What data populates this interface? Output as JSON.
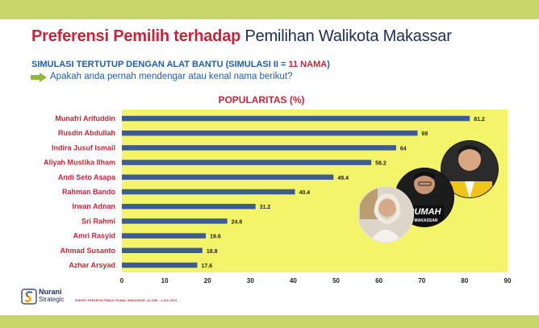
{
  "header": {
    "title_part1": "Preferensi Pemilih terhadap",
    "title_part2": "Pemilihan Walikota Makassar",
    "subtitle": "SIMULASI TERTUTUP DENGAN ALAT BANTU (SIMULASI II = ",
    "subtitle_count": "11 NAMA",
    "subtitle_close": ")",
    "question": "Apakah anda pernah mendengar atau kenal nama berikut?"
  },
  "colors": {
    "bar": "#3c5c93",
    "plot_bg": "#f4f46a",
    "title_red": "#c0273a",
    "title_navy": "#1d2d55",
    "label_red": "#c0273a",
    "frame": "#c7d76a",
    "arrow": "#8db93a"
  },
  "chart_data": {
    "type": "bar",
    "orientation": "horizontal",
    "title": "POPULARITAS (%)",
    "categories": [
      "Munafri Arifuddin",
      "Rusdin Abdullah",
      "Indira Jusuf Ismail",
      "Aliyah Mustika Ilham",
      "Andi Seto Asapa",
      "Rahman Bando",
      "Irwan Adnan",
      "Sri Rahmi",
      "Amri Rasyid",
      "Ahmad Susanto",
      "Azhar Arsyad"
    ],
    "values": [
      81.2,
      69,
      64,
      58.2,
      49.4,
      40.4,
      31.2,
      24.6,
      19.6,
      18.8,
      17.6
    ],
    "value_labels": [
      "81.2",
      "69",
      "64",
      "58.2",
      "49.4",
      "40.4",
      "31.2",
      "24.6",
      "19.6",
      "18.8",
      "17.6"
    ],
    "xlim": [
      0,
      90
    ],
    "xticks": [
      "0",
      "10",
      "20",
      "30",
      "40",
      "50",
      "60",
      "70",
      "80",
      "90"
    ],
    "grid": false
  },
  "photo_overlay": {
    "banner_text": "RUMAH",
    "banner_sub": "MAKASSAR"
  },
  "footer": {
    "logo_name": "Nurani",
    "logo_sub": "Strategic",
    "note": "SURVEY PERSEPSI PUBLIK PILWALI MAKASSAR, 24 JUNI - 4 JULI 2024"
  }
}
